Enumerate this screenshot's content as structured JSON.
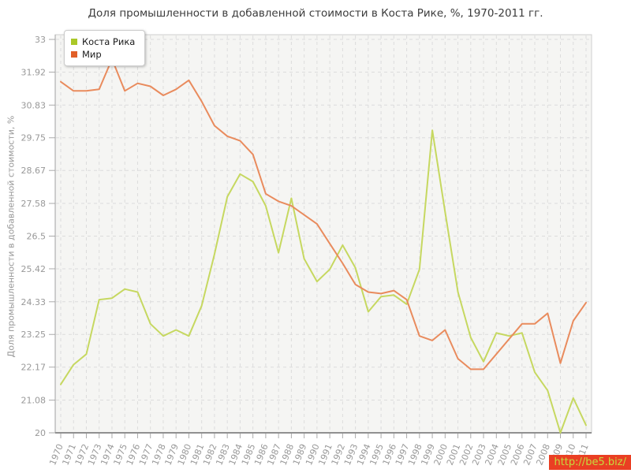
{
  "header": {
    "title": "Доля промышленности в добавленной стоимости в Коста Рике, %, 1970-2011 гг."
  },
  "watermark": {
    "text": "http://be5.biz/",
    "bg_color": "#ea3f23",
    "text_color": "#c6da3e"
  },
  "chart_data": {
    "type": "line",
    "title": "Доля промышленности в добавленной стоимости в Коста Рике, %, 1970-2011 гг.",
    "xlabel": "",
    "ylabel": "Доля промышленности в добавленной стоимости, %",
    "x": [
      1970,
      1971,
      1972,
      1973,
      1974,
      1975,
      1976,
      1977,
      1978,
      1979,
      1980,
      1981,
      1982,
      1983,
      1984,
      1985,
      1986,
      1987,
      1988,
      1989,
      1990,
      1991,
      1992,
      1993,
      1994,
      1995,
      1996,
      1997,
      1998,
      1999,
      2000,
      2001,
      2002,
      2003,
      2004,
      2005,
      2006,
      2007,
      2008,
      2009,
      2010,
      2011
    ],
    "y_ticks": [
      33,
      31.92,
      30.83,
      29.75,
      28.67,
      27.58,
      26.5,
      25.42,
      24.33,
      23.25,
      22.17,
      21.08,
      20
    ],
    "ylim": [
      20,
      33
    ],
    "grid": true,
    "legend_position": "top-left",
    "series": [
      {
        "name": "Коста Рика",
        "line_color": "#c6d860",
        "swatch_color": "#aac828",
        "values": [
          21.6,
          22.25,
          22.6,
          24.4,
          24.45,
          24.75,
          24.65,
          23.6,
          23.2,
          23.4,
          23.2,
          24.2,
          25.9,
          27.8,
          28.55,
          28.3,
          27.5,
          25.95,
          27.75,
          25.75,
          25.0,
          25.4,
          26.2,
          25.45,
          24.0,
          24.5,
          24.55,
          24.25,
          25.4,
          30.0,
          27.3,
          24.65,
          23.15,
          22.35,
          23.3,
          23.2,
          23.3,
          22.0,
          21.4,
          20.0,
          21.15,
          20.25
        ]
      },
      {
        "name": "Мир",
        "line_color": "#e98b5d",
        "swatch_color": "#e15f28",
        "values": [
          31.6,
          31.3,
          31.3,
          31.35,
          32.35,
          31.3,
          31.55,
          31.45,
          31.15,
          31.35,
          31.65,
          30.95,
          30.15,
          29.8,
          29.65,
          29.2,
          27.9,
          27.65,
          27.5,
          27.2,
          26.9,
          26.25,
          25.6,
          24.9,
          24.65,
          24.6,
          24.7,
          24.4,
          23.2,
          23.05,
          23.4,
          22.45,
          22.1,
          22.1,
          22.6,
          23.1,
          23.6,
          23.6,
          23.95,
          22.3,
          23.7,
          24.3
        ]
      }
    ],
    "style": {
      "plot_bg": "#f5f5f3",
      "grid_color": "#dcdcdc",
      "border_color": "#cfcfcf",
      "axis_color": "#909090",
      "tick_label_color": "#999999"
    }
  }
}
